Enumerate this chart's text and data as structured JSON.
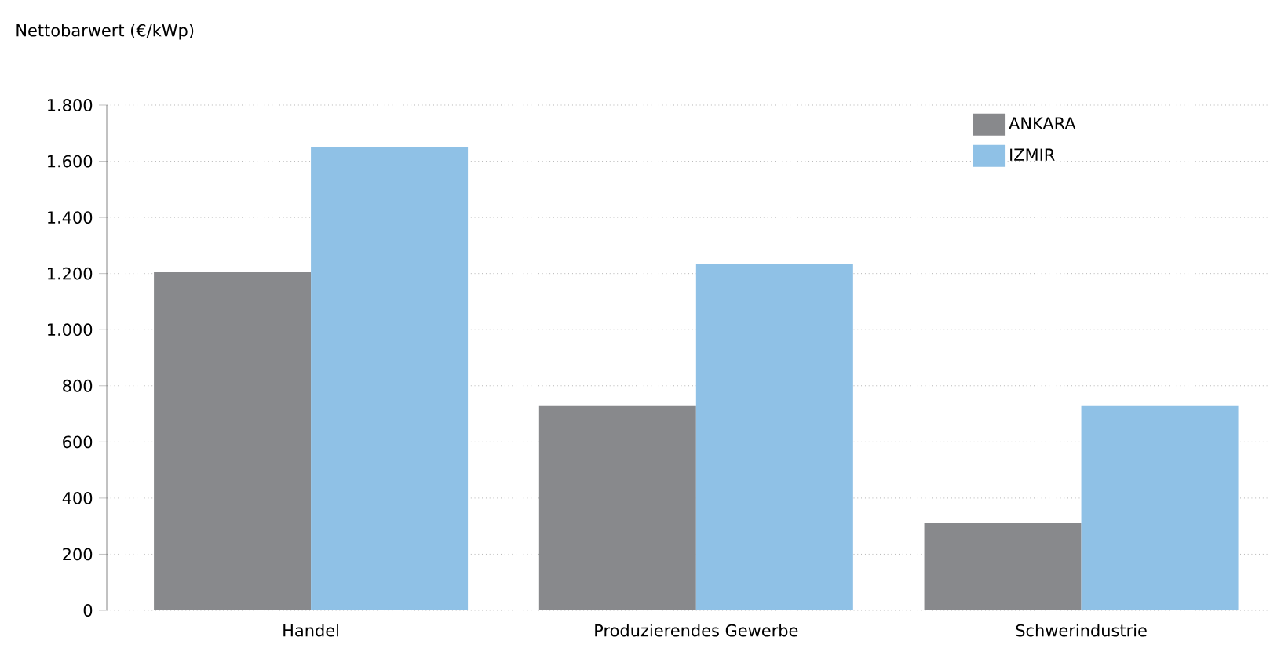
{
  "chart_data": {
    "type": "bar",
    "ylabel": "Nettobarwert (€/kWp)",
    "categories": [
      "Handel",
      "Produzierendes Gewerbe",
      "Schwerindustrie"
    ],
    "series": [
      {
        "name": "ANKARA",
        "color": "#88898c",
        "values": [
          1205,
          730,
          310
        ]
      },
      {
        "name": "IZMIR",
        "color": "#8fc1e6",
        "values": [
          1650,
          1235,
          730
        ]
      }
    ],
    "ylim": [
      0,
      1800
    ],
    "yticks": [
      {
        "value": 0,
        "label": "0"
      },
      {
        "value": 200,
        "label": "200"
      },
      {
        "value": 400,
        "label": "400"
      },
      {
        "value": 600,
        "label": "600"
      },
      {
        "value": 800,
        "label": "800"
      },
      {
        "value": 1000,
        "label": "1.000"
      },
      {
        "value": 1200,
        "label": "1.200"
      },
      {
        "value": 1400,
        "label": "1.400"
      },
      {
        "value": 1600,
        "label": "1.600"
      },
      {
        "value": 1800,
        "label": "1.800"
      }
    ],
    "grid": "y",
    "legend": "top right"
  }
}
